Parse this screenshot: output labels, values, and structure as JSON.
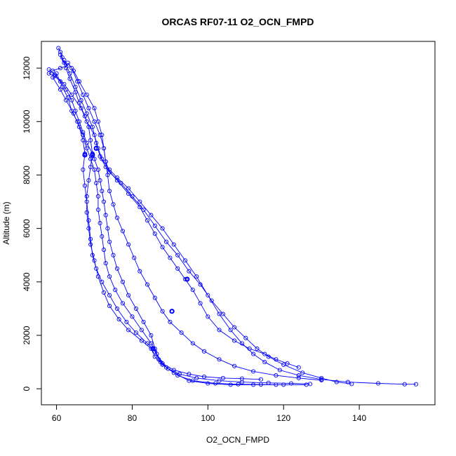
{
  "chart_data": {
    "type": "line",
    "title": "ORCAS RF07-11 O2_OCN_FMPD",
    "xlabel": "O2_OCN_FMPD",
    "ylabel": "Altitude (m)",
    "xlim": [
      56,
      160
    ],
    "ylim": [
      -600,
      13000
    ],
    "xticks": [
      60,
      80,
      100,
      120,
      140
    ],
    "yticks": [
      0,
      2000,
      4000,
      6000,
      8000,
      10000,
      12000
    ],
    "grid": false,
    "legend": "none",
    "style": {
      "color": "#0000ff",
      "marker": "open-circle",
      "line": "solid"
    },
    "series": [
      {
        "points": [
          [
            60.5,
            12750
          ],
          [
            61,
            12600
          ],
          [
            61.5,
            12400
          ],
          [
            62,
            12200
          ],
          [
            63,
            12100
          ],
          [
            61,
            12000
          ],
          [
            59,
            11900
          ],
          [
            58,
            11800
          ],
          [
            59.5,
            11700
          ],
          [
            61,
            11500
          ],
          [
            62.5,
            11200
          ],
          [
            64,
            10800
          ],
          [
            65,
            10400
          ],
          [
            66,
            10000
          ],
          [
            67,
            9600
          ],
          [
            68,
            9200
          ],
          [
            69.5,
            8800
          ],
          [
            70,
            8600
          ],
          [
            71,
            8200
          ],
          [
            71.5,
            7800
          ],
          [
            72,
            7400
          ],
          [
            72.5,
            7000
          ],
          [
            73,
            6500
          ],
          [
            73.5,
            6000
          ],
          [
            74,
            5500
          ],
          [
            75,
            5000
          ],
          [
            76,
            4500
          ],
          [
            77.5,
            4000
          ],
          [
            79,
            3500
          ],
          [
            81,
            3000
          ],
          [
            83,
            2500
          ],
          [
            85,
            2000
          ],
          [
            86,
            1500
          ],
          [
            87,
            1100
          ],
          [
            89,
            800
          ],
          [
            92,
            500
          ],
          [
            96,
            300
          ],
          [
            102,
            200
          ],
          [
            108,
            170
          ],
          [
            114,
            160
          ],
          [
            120,
            150
          ],
          [
            126,
            150
          ]
        ]
      },
      {
        "points": [
          [
            58,
            11950
          ],
          [
            59.5,
            11750
          ],
          [
            62,
            11400
          ],
          [
            64,
            11000
          ],
          [
            66.5,
            10500
          ],
          [
            68,
            10000
          ],
          [
            70,
            9500
          ],
          [
            71,
            9000
          ],
          [
            72,
            8600
          ],
          [
            74,
            8200
          ],
          [
            76,
            7900
          ],
          [
            79,
            7500
          ],
          [
            82,
            7000
          ],
          [
            85,
            6500
          ],
          [
            88,
            6000
          ],
          [
            91,
            5400
          ],
          [
            94,
            4800
          ],
          [
            97,
            4200
          ],
          [
            100,
            3500
          ],
          [
            103,
            2800
          ],
          [
            106,
            2200
          ],
          [
            109,
            1700
          ],
          [
            112,
            1300
          ],
          [
            115,
            1000
          ],
          [
            119,
            700
          ],
          [
            124,
            500
          ],
          [
            130,
            350
          ],
          [
            137,
            250
          ],
          [
            145,
            200
          ],
          [
            152,
            170
          ],
          [
            155,
            170
          ]
        ]
      },
      {
        "points": [
          [
            61,
            12500
          ],
          [
            62.5,
            12000
          ],
          [
            63.5,
            11600
          ],
          [
            65,
            11100
          ],
          [
            66,
            10700
          ],
          [
            67.5,
            10200
          ],
          [
            68.5,
            9800
          ],
          [
            69,
            9300
          ],
          [
            69.5,
            8800
          ],
          [
            69,
            8300
          ],
          [
            68.5,
            7800
          ],
          [
            68,
            7200
          ],
          [
            68,
            6600
          ],
          [
            68.5,
            6000
          ],
          [
            69,
            5400
          ],
          [
            70,
            4800
          ],
          [
            71,
            4200
          ],
          [
            72.5,
            3600
          ],
          [
            74,
            3100
          ],
          [
            76.5,
            2600
          ],
          [
            79,
            2200
          ],
          [
            82.5,
            1800
          ],
          [
            85,
            1500
          ],
          [
            86,
            1200
          ],
          [
            88,
            900
          ],
          [
            91,
            600
          ],
          [
            95,
            300
          ],
          [
            100,
            200
          ],
          [
            106,
            150
          ],
          [
            112,
            150
          ],
          [
            118,
            150
          ]
        ]
      },
      {
        "points": [
          [
            63,
            12200
          ],
          [
            64.5,
            11900
          ],
          [
            66,
            11500
          ],
          [
            68,
            11000
          ],
          [
            70,
            10500
          ],
          [
            71,
            10000
          ],
          [
            72,
            9500
          ],
          [
            72.5,
            9000
          ],
          [
            73,
            8500
          ],
          [
            74,
            8100
          ],
          [
            77,
            7700
          ],
          [
            80,
            7200
          ],
          [
            83,
            6700
          ],
          [
            86,
            6100
          ],
          [
            89,
            5500
          ],
          [
            92,
            5000
          ],
          [
            95,
            4400
          ],
          [
            98,
            3900
          ],
          [
            101,
            3300
          ],
          [
            104,
            2800
          ],
          [
            107,
            2300
          ],
          [
            110,
            1900
          ],
          [
            113,
            1500
          ],
          [
            116,
            1200
          ],
          [
            120,
            900
          ],
          [
            125,
            600
          ],
          [
            130,
            400
          ],
          [
            134,
            250
          ],
          [
            138,
            180
          ]
        ]
      },
      {
        "points": [
          [
            60,
            11800
          ],
          [
            61.5,
            11300
          ],
          [
            63,
            10900
          ],
          [
            64,
            10400
          ],
          [
            65.5,
            10000
          ],
          [
            67,
            9500
          ],
          [
            68,
            9000
          ],
          [
            69,
            8600
          ],
          [
            70,
            8200
          ],
          [
            70.5,
            7700
          ],
          [
            71,
            7200
          ],
          [
            71,
            6700
          ],
          [
            71.5,
            6200
          ],
          [
            72,
            5700
          ],
          [
            72.5,
            5200
          ],
          [
            73,
            4700
          ],
          [
            74,
            4200
          ],
          [
            75.5,
            3700
          ],
          [
            77.5,
            3200
          ],
          [
            80,
            2700
          ],
          [
            82.5,
            2200
          ],
          [
            85,
            1700
          ],
          [
            86.5,
            1300
          ],
          [
            88,
            950
          ],
          [
            91,
            700
          ],
          [
            95,
            550
          ],
          [
            99,
            450
          ],
          [
            104,
            400
          ],
          [
            109,
            380
          ],
          [
            114,
            350
          ]
        ]
      },
      {
        "points": [
          [
            62,
            12300
          ],
          [
            63.5,
            11800
          ],
          [
            65,
            11300
          ],
          [
            66.5,
            10800
          ],
          [
            68,
            10300
          ],
          [
            69.5,
            9800
          ],
          [
            70.5,
            9200
          ],
          [
            71.5,
            8700
          ],
          [
            73,
            8300
          ],
          [
            76,
            7800
          ],
          [
            79,
            7300
          ],
          [
            82,
            6800
          ],
          [
            84,
            6300
          ],
          [
            86,
            5800
          ],
          [
            88,
            5300
          ],
          [
            90,
            4900
          ],
          [
            92,
            4500
          ],
          [
            94,
            4100
          ],
          [
            96,
            3700
          ],
          [
            98,
            3200
          ],
          [
            100,
            2700
          ],
          [
            103,
            2200
          ],
          [
            107,
            1800
          ],
          [
            111,
            1500
          ],
          [
            115,
            1300
          ],
          [
            118,
            1100
          ],
          [
            121,
            950
          ],
          [
            124,
            800
          ]
        ]
      },
      {
        "points": [
          [
            59,
            11650
          ],
          [
            61,
            11200
          ],
          [
            62.5,
            10800
          ],
          [
            64.5,
            10300
          ],
          [
            66,
            9800
          ],
          [
            67,
            9300
          ],
          [
            67.5,
            8800
          ],
          [
            67,
            8200
          ],
          [
            67.5,
            7600
          ],
          [
            68,
            7000
          ],
          [
            68.5,
            6300
          ],
          [
            69,
            5600
          ],
          [
            69.5,
            5000
          ],
          [
            70.5,
            4500
          ],
          [
            72,
            4000
          ],
          [
            74,
            3500
          ],
          [
            76,
            3000
          ],
          [
            78.5,
            2500
          ],
          [
            81,
            2100
          ],
          [
            84,
            1700
          ],
          [
            86,
            1400
          ],
          [
            87.5,
            1000
          ],
          [
            89.5,
            750
          ],
          [
            92.5,
            550
          ],
          [
            97,
            400
          ],
          [
            103,
            300
          ],
          [
            109,
            250
          ],
          [
            116,
            220
          ],
          [
            122,
            200
          ],
          [
            127,
            180
          ]
        ]
      },
      {
        "points": [
          [
            64,
            12000
          ],
          [
            65.5,
            11500
          ],
          [
            67,
            11000
          ],
          [
            68.5,
            10500
          ],
          [
            70,
            10000
          ],
          [
            71.5,
            9500
          ],
          [
            72.5,
            9000
          ],
          [
            73,
            8500
          ],
          [
            73.5,
            8000
          ],
          [
            74,
            7400
          ],
          [
            75,
            6900
          ],
          [
            76,
            6400
          ],
          [
            77.5,
            5900
          ],
          [
            79,
            5400
          ],
          [
            80.5,
            4900
          ],
          [
            82,
            4400
          ],
          [
            84,
            3900
          ],
          [
            86,
            3400
          ],
          [
            88,
            2900
          ],
          [
            90,
            2500
          ],
          [
            93,
            2100
          ],
          [
            96,
            1700
          ],
          [
            99,
            1400
          ],
          [
            103,
            1100
          ],
          [
            107,
            850
          ],
          [
            112,
            650
          ],
          [
            118,
            500
          ],
          [
            124,
            400
          ],
          [
            130,
            320
          ]
        ]
      }
    ],
    "highlight_points": [
      [
        94.5,
        4100
      ],
      [
        90.5,
        2900
      ],
      [
        85.5,
        1500
      ],
      [
        70.5,
        9000
      ],
      [
        69.5,
        8750
      ],
      [
        67.5,
        8750
      ]
    ]
  }
}
